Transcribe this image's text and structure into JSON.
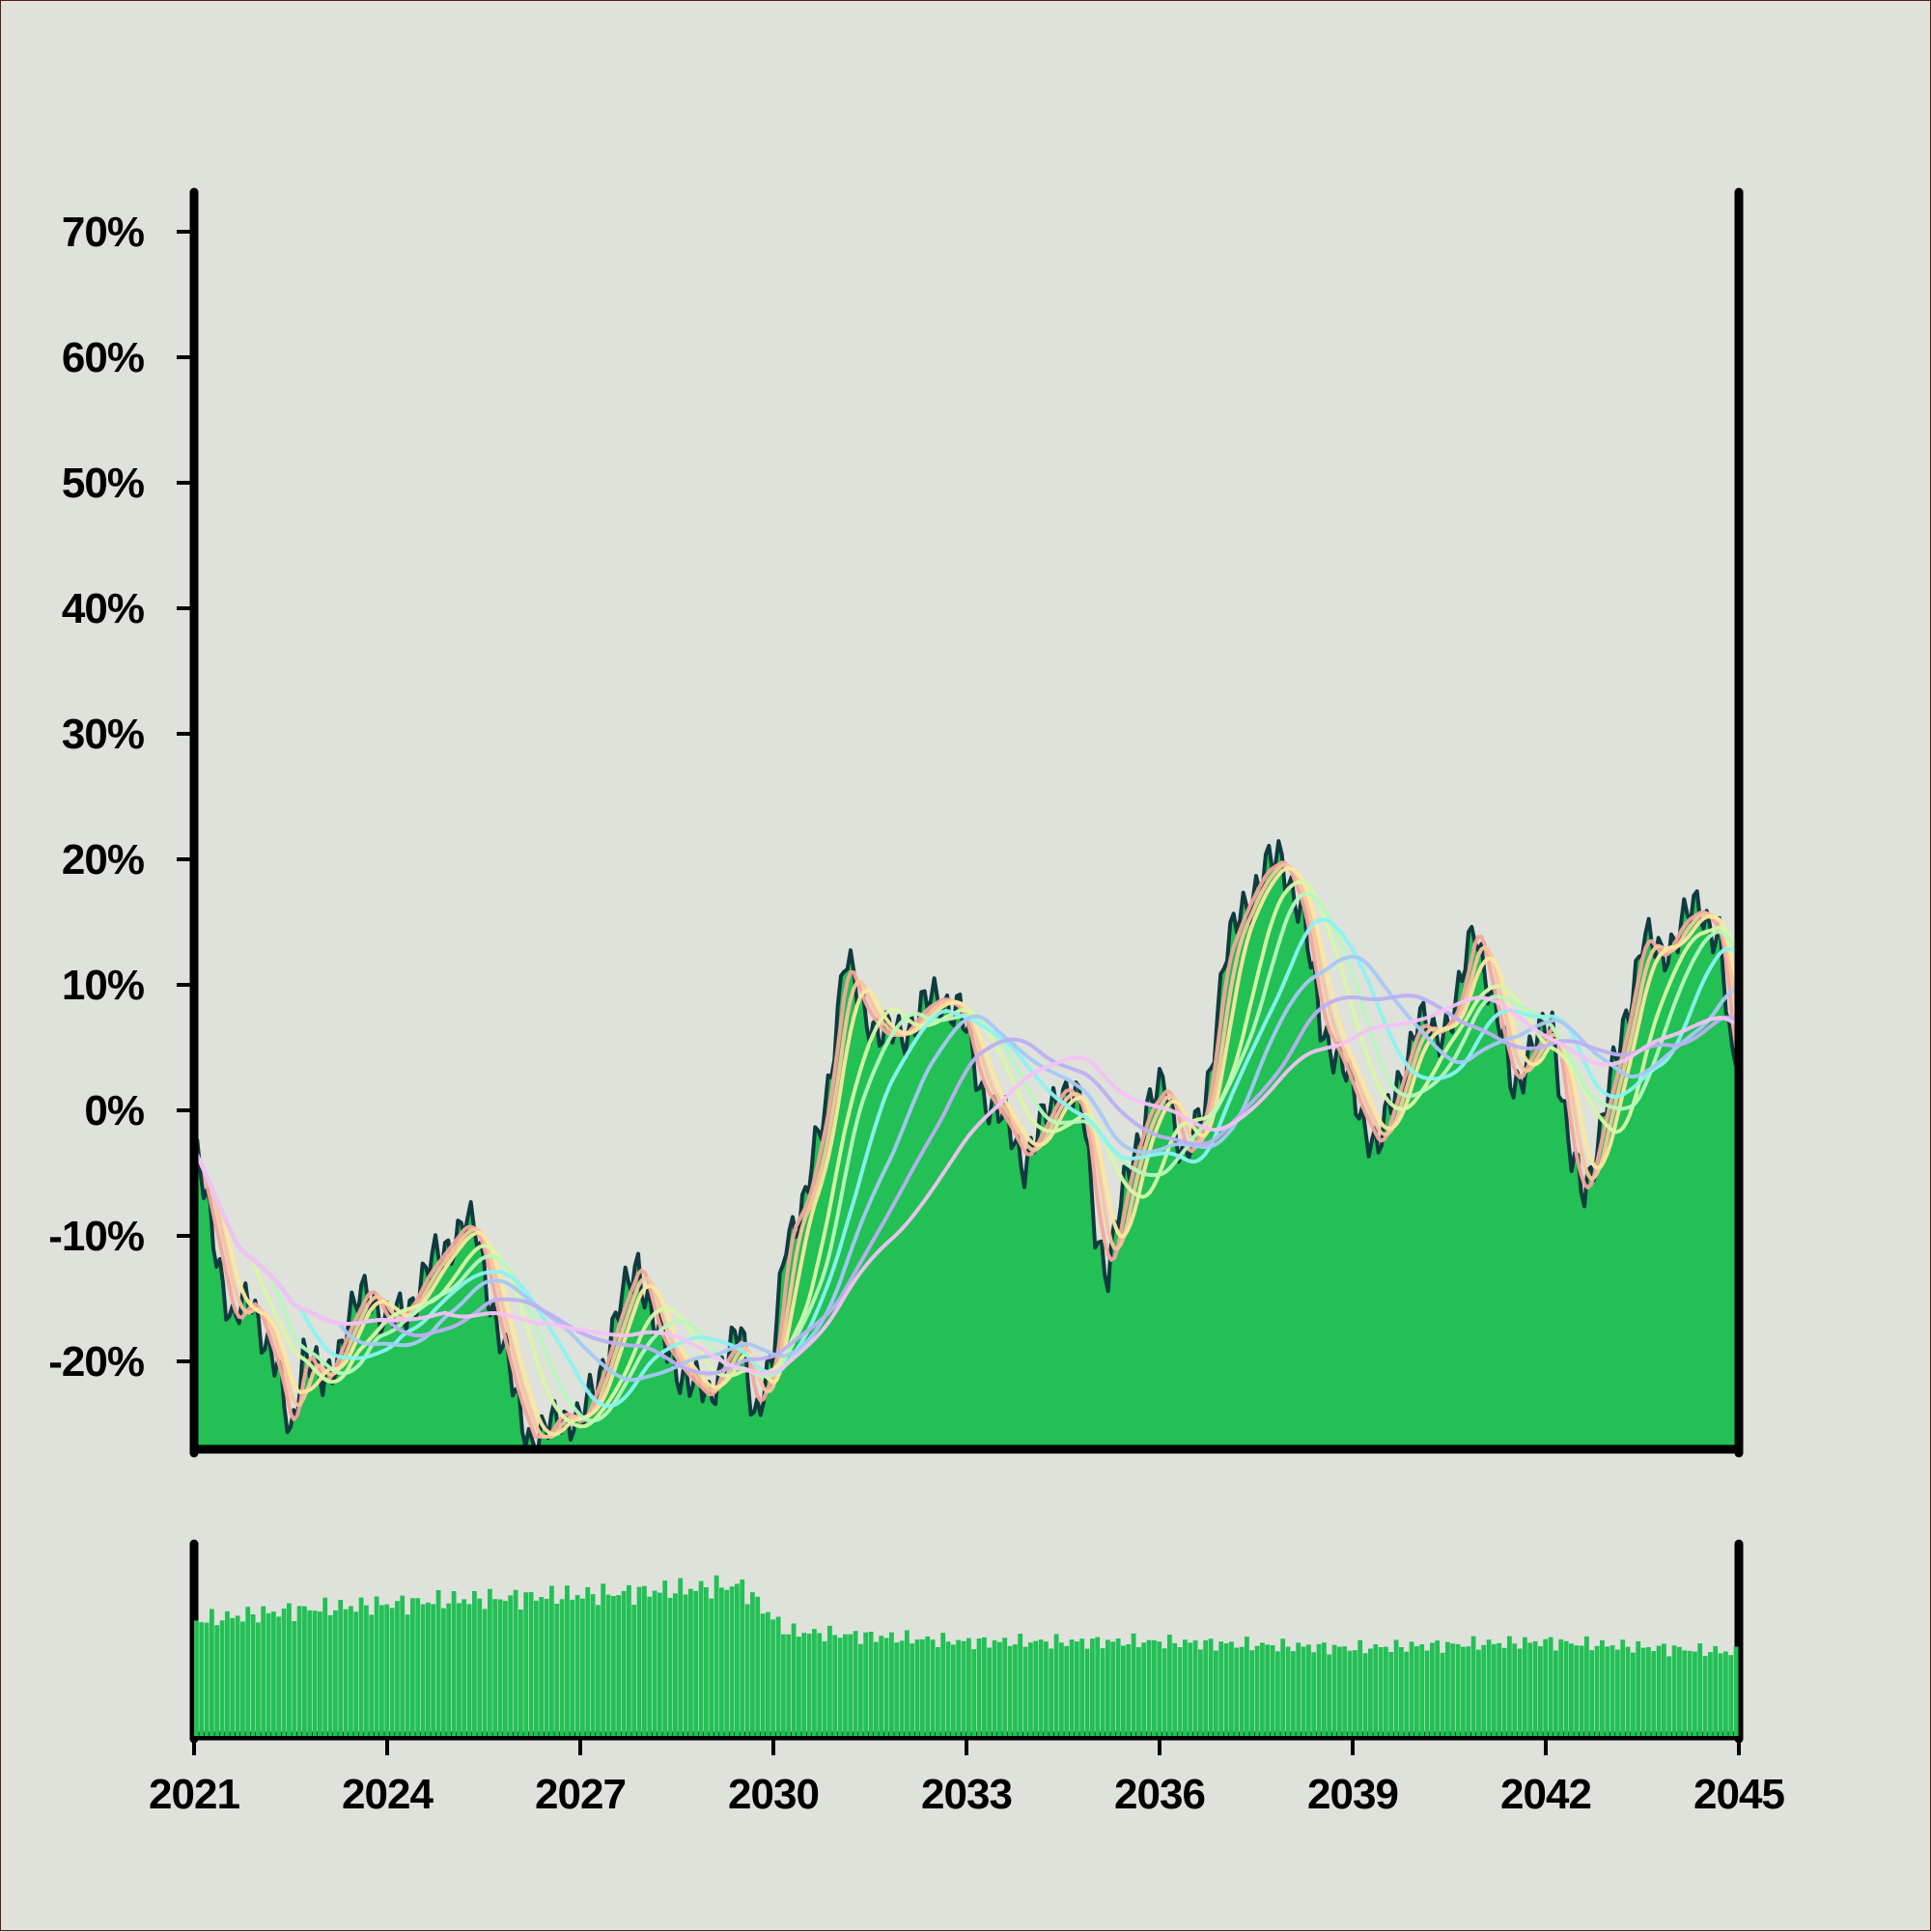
{
  "chart_data": {
    "type": "area",
    "title": "",
    "xlabel": "",
    "ylabel": "",
    "xlim": [
      2021,
      2045
    ],
    "ylim": [
      -27,
      73
    ],
    "x_ticks": [
      "2021",
      "2024",
      "2027",
      "2030",
      "2033",
      "2036",
      "2039",
      "2042",
      "2045"
    ],
    "y_ticks": [
      "70%",
      "60%",
      "50%",
      "40%",
      "30%",
      "20%",
      "10%",
      "0%",
      "-10%",
      "-20%"
    ],
    "y_tick_values": [
      70,
      60,
      50,
      40,
      30,
      20,
      10,
      0,
      -10,
      -20
    ],
    "grid": false,
    "legend": "none",
    "main_series": {
      "fill_color": "#22c055",
      "line_color": "#0f3b3f",
      "points": [
        [
          2021.0,
          -3
        ],
        [
          2021.3,
          -10
        ],
        [
          2021.6,
          -17
        ],
        [
          2021.9,
          -15
        ],
        [
          2022.3,
          -21
        ],
        [
          2022.5,
          -26
        ],
        [
          2022.7,
          -19
        ],
        [
          2023.0,
          -22
        ],
        [
          2023.4,
          -17
        ],
        [
          2023.7,
          -14
        ],
        [
          2024.0,
          -17
        ],
        [
          2024.3,
          -16
        ],
        [
          2024.6,
          -13
        ],
        [
          2024.9,
          -11
        ],
        [
          2025.2,
          -9
        ],
        [
          2025.4,
          -10
        ],
        [
          2025.7,
          -17
        ],
        [
          2026.0,
          -23
        ],
        [
          2026.3,
          -27
        ],
        [
          2026.7,
          -24
        ],
        [
          2027.0,
          -25
        ],
        [
          2027.3,
          -21
        ],
        [
          2027.6,
          -16
        ],
        [
          2027.9,
          -12
        ],
        [
          2028.2,
          -18
        ],
        [
          2028.6,
          -21
        ],
        [
          2029.0,
          -23
        ],
        [
          2029.2,
          -20
        ],
        [
          2029.5,
          -18
        ],
        [
          2029.7,
          -24
        ],
        [
          2030.0,
          -20
        ],
        [
          2030.2,
          -10
        ],
        [
          2030.5,
          -7
        ],
        [
          2030.8,
          0
        ],
        [
          2031.1,
          12
        ],
        [
          2031.4,
          8
        ],
        [
          2031.7,
          6
        ],
        [
          2032.0,
          6
        ],
        [
          2032.3,
          8
        ],
        [
          2032.6,
          9
        ],
        [
          2032.9,
          8
        ],
        [
          2033.2,
          2
        ],
        [
          2033.6,
          -1
        ],
        [
          2033.9,
          -4
        ],
        [
          2034.2,
          -1
        ],
        [
          2034.5,
          2
        ],
        [
          2034.8,
          0
        ],
        [
          2035.0,
          -9
        ],
        [
          2035.2,
          -13
        ],
        [
          2035.5,
          -5
        ],
        [
          2035.8,
          0
        ],
        [
          2036.1,
          2
        ],
        [
          2036.4,
          -4
        ],
        [
          2036.7,
          0
        ],
        [
          2037.0,
          12
        ],
        [
          2037.3,
          16
        ],
        [
          2037.6,
          19
        ],
        [
          2037.9,
          20
        ],
        [
          2038.2,
          16
        ],
        [
          2038.5,
          7
        ],
        [
          2038.8,
          4
        ],
        [
          2039.1,
          0
        ],
        [
          2039.4,
          -3
        ],
        [
          2039.7,
          2
        ],
        [
          2040.0,
          7
        ],
        [
          2040.3,
          6
        ],
        [
          2040.6,
          8
        ],
        [
          2040.9,
          15
        ],
        [
          2041.2,
          8
        ],
        [
          2041.5,
          2
        ],
        [
          2041.8,
          5
        ],
        [
          2042.1,
          7
        ],
        [
          2042.4,
          -4
        ],
        [
          2042.6,
          -7
        ],
        [
          2042.9,
          0
        ],
        [
          2043.2,
          6
        ],
        [
          2043.5,
          14
        ],
        [
          2043.8,
          12
        ],
        [
          2044.1,
          15
        ],
        [
          2044.4,
          16
        ],
        [
          2044.7,
          14
        ],
        [
          2044.9,
          3
        ],
        [
          2045.0,
          5
        ]
      ]
    },
    "moving_averages": [
      {
        "color": "#f4a59b",
        "window": 1
      },
      {
        "color": "#f8c49d",
        "window": 2
      },
      {
        "color": "#fce79e",
        "window": 3
      },
      {
        "color": "#d8f7a8",
        "window": 6
      },
      {
        "color": "#b7f7bd",
        "window": 8
      },
      {
        "color": "#8cf2f2",
        "window": 11
      },
      {
        "color": "#a8c8f4",
        "window": 15
      },
      {
        "color": "#bcb0f2",
        "window": 20
      },
      {
        "color": "#f4c2f4",
        "window": 26
      }
    ],
    "volume": {
      "color": "#22c055",
      "count": 300,
      "level_by_period": [
        [
          2021.0,
          0.55
        ],
        [
          2022.5,
          0.6
        ],
        [
          2025.0,
          0.65
        ],
        [
          2027.5,
          0.68
        ],
        [
          2029.5,
          0.72
        ],
        [
          2030.2,
          0.5
        ],
        [
          2033.0,
          0.45
        ],
        [
          2036.0,
          0.45
        ],
        [
          2039.0,
          0.42
        ],
        [
          2042.0,
          0.45
        ],
        [
          2045.0,
          0.4
        ]
      ]
    }
  }
}
